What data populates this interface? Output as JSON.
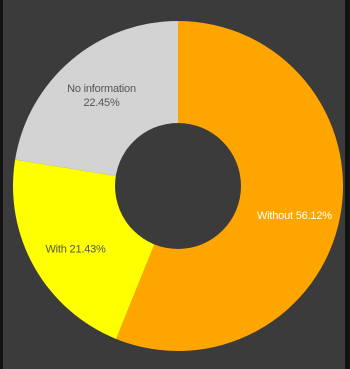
{
  "chart_data": {
    "type": "pie",
    "donut": true,
    "slices": [
      {
        "label": "Without",
        "value": 56.12,
        "percent_text": "56.12%",
        "color": "#ffa500",
        "text_color": "#ffffff"
      },
      {
        "label": "With",
        "value": 21.43,
        "percent_text": "21.43%",
        "color": "#ffff00",
        "text_color": "#555555"
      },
      {
        "label": "No information",
        "value": 22.45,
        "percent_text": "22.45%",
        "color": "#d3d3d3",
        "text_color": "#555555"
      }
    ],
    "legend": "none",
    "colors": {
      "background": "#3b3b3b",
      "page": "#111111"
    }
  }
}
